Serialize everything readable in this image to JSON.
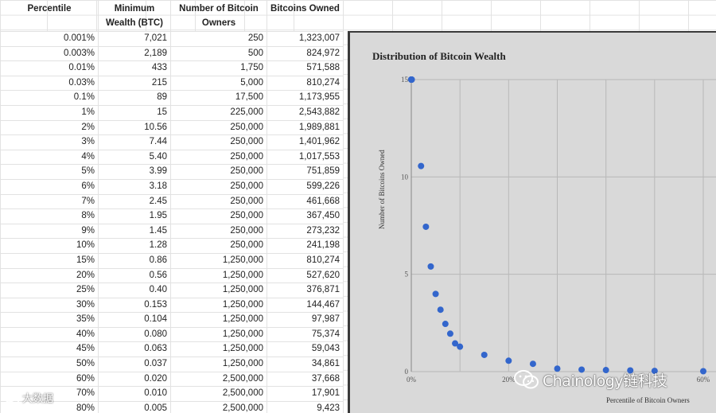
{
  "sheet": {
    "headers": [
      "Percentile",
      "Minimum Wealth (BTC)",
      "Number of Bitcoin Owners",
      "Bitcoins Owned"
    ],
    "rows": [
      [
        "0.001%",
        "7,021",
        "250",
        "1,323,007"
      ],
      [
        "0.003%",
        "2,189",
        "500",
        "824,972"
      ],
      [
        "0.01%",
        "433",
        "1,750",
        "571,588"
      ],
      [
        "0.03%",
        "215",
        "5,000",
        "810,274"
      ],
      [
        "0.1%",
        "89",
        "17,500",
        "1,173,955"
      ],
      [
        "1%",
        "15",
        "225,000",
        "2,543,882"
      ],
      [
        "2%",
        "10.56",
        "250,000",
        "1,989,881"
      ],
      [
        "3%",
        "7.44",
        "250,000",
        "1,401,962"
      ],
      [
        "4%",
        "5.40",
        "250,000",
        "1,017,553"
      ],
      [
        "5%",
        "3.99",
        "250,000",
        "751,859"
      ],
      [
        "6%",
        "3.18",
        "250,000",
        "599,226"
      ],
      [
        "7%",
        "2.45",
        "250,000",
        "461,668"
      ],
      [
        "8%",
        "1.95",
        "250,000",
        "367,450"
      ],
      [
        "9%",
        "1.45",
        "250,000",
        "273,232"
      ],
      [
        "10%",
        "1.28",
        "250,000",
        "241,198"
      ],
      [
        "15%",
        "0.86",
        "1,250,000",
        "810,274"
      ],
      [
        "20%",
        "0.56",
        "1,250,000",
        "527,620"
      ],
      [
        "25%",
        "0.40",
        "1,250,000",
        "376,871"
      ],
      [
        "30%",
        "0.153",
        "1,250,000",
        "144,467"
      ],
      [
        "35%",
        "0.104",
        "1,250,000",
        "97,987"
      ],
      [
        "40%",
        "0.080",
        "1,250,000",
        "75,374"
      ],
      [
        "45%",
        "0.063",
        "1,250,000",
        "59,043"
      ],
      [
        "50%",
        "0.037",
        "1,250,000",
        "34,861"
      ],
      [
        "60%",
        "0.020",
        "2,500,000",
        "37,668"
      ],
      [
        "70%",
        "0.010",
        "2,500,000",
        "17,901"
      ],
      [
        "80%",
        "0.005",
        "2,500,000",
        "9,423"
      ]
    ]
  },
  "chart": {
    "title": "Distribution of Bitcoin Wealth",
    "ylabel": "Number of Bitcoins Owned",
    "xlabel": "Percentile of Bitcoin Owners"
  },
  "chart_data": {
    "type": "scatter",
    "title": "Distribution of Bitcoin Wealth",
    "xlabel": "Percentile of Bitcoin Owners",
    "ylabel": "Number of Bitcoins Owned",
    "x_tick_labels": [
      "0%",
      "20%",
      "60%"
    ],
    "y_tick_labels": [
      "0",
      "5",
      "10",
      "15"
    ],
    "xlim": [
      0,
      60
    ],
    "ylim": [
      0,
      15
    ],
    "point_color": "#3366cc",
    "series": [
      {
        "x": [
          0,
          0.001,
          0.003,
          0.01,
          0.03,
          0.1,
          2,
          3,
          4,
          5,
          6,
          7,
          8,
          9,
          10,
          15,
          20,
          25,
          30,
          35,
          40,
          45,
          50,
          60
        ],
        "y": [
          15,
          15,
          15,
          15,
          15,
          15,
          10.56,
          7.44,
          5.4,
          3.99,
          3.18,
          2.45,
          1.95,
          1.45,
          1.28,
          0.86,
          0.56,
          0.4,
          0.153,
          0.104,
          0.08,
          0.063,
          0.037,
          0.02
        ]
      }
    ],
    "grid": true
  },
  "watermarks": {
    "right_text": "Chainology链科技",
    "left_text": "大数据"
  }
}
